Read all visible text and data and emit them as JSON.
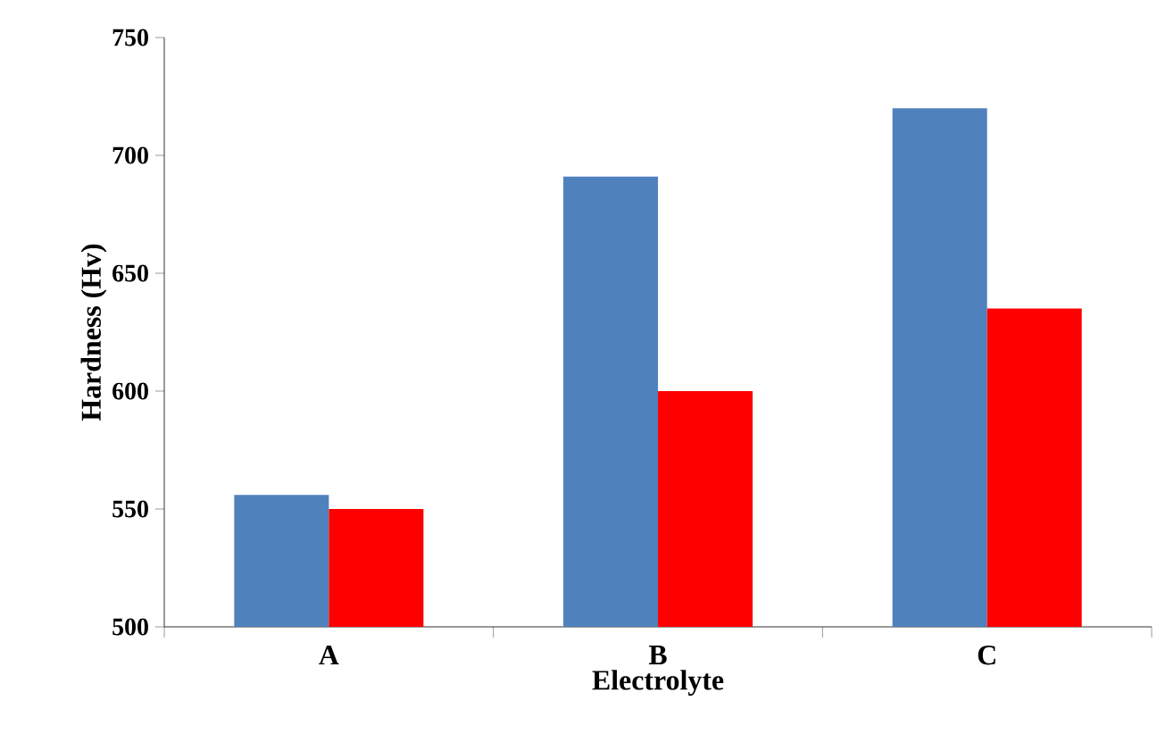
{
  "chart_data": {
    "type": "bar",
    "xlabel": "Electrolyte",
    "ylabel": "Hardness (Hv)",
    "categories": [
      "A",
      "B",
      "C"
    ],
    "series": [
      {
        "color": "#4f81bd",
        "values": [
          556,
          691,
          720
        ]
      },
      {
        "color": "#ff0000",
        "values": [
          550,
          600,
          635
        ]
      }
    ],
    "ylim": [
      500,
      750
    ],
    "yticks": [
      500,
      550,
      600,
      650,
      700,
      750
    ],
    "grid": false
  }
}
